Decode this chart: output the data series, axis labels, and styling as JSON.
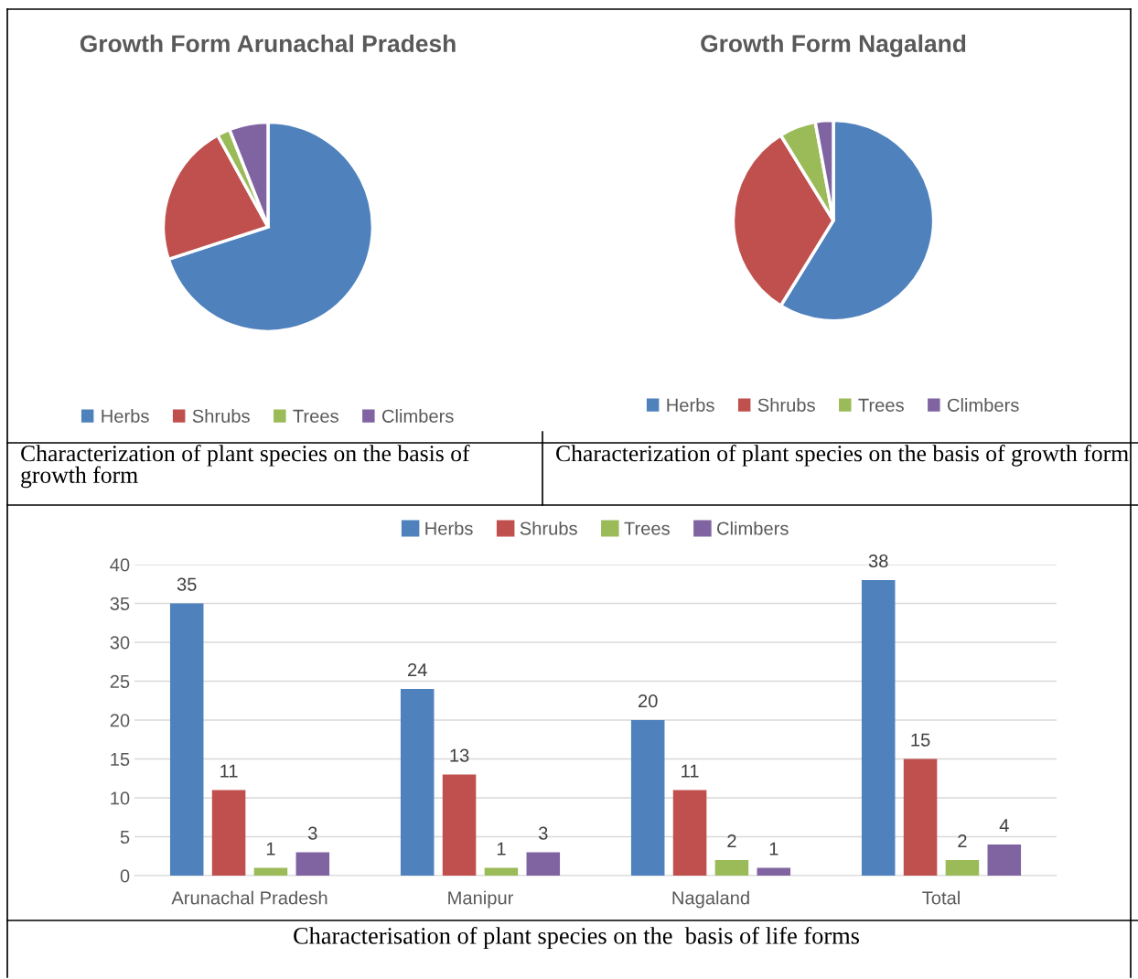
{
  "chart_data": [
    {
      "type": "pie",
      "title": "Growth Form Arunachal Pradesh",
      "categories": [
        "Herbs",
        "Shrubs",
        "Trees",
        "Climbers"
      ],
      "values": [
        70,
        22,
        2,
        6
      ],
      "colors": [
        "#4f81bd",
        "#c0504d",
        "#9bbb59",
        "#8064a2"
      ],
      "legend": "bottom",
      "annotations": [
        "Characterization of plant species on the basis of growth form"
      ]
    },
    {
      "type": "pie",
      "title": "Growth Form Nagaland",
      "categories": [
        "Herbs",
        "Shrubs",
        "Trees",
        "Climbers"
      ],
      "values": [
        58.8,
        32.4,
        5.9,
        2.9
      ],
      "colors": [
        "#4f81bd",
        "#c0504d",
        "#9bbb59",
        "#8064a2"
      ],
      "legend": "bottom",
      "annotations": [
        "Characterization of plant species on the basis of growth form"
      ]
    },
    {
      "type": "bar",
      "categories": [
        "Arunachal Pradesh",
        "Manipur",
        "Nagaland",
        "Total"
      ],
      "series": [
        {
          "name": "Herbs",
          "color": "#4f81bd",
          "values": [
            35,
            24,
            20,
            38
          ]
        },
        {
          "name": "Shrubs",
          "color": "#c0504d",
          "values": [
            11,
            13,
            11,
            15
          ]
        },
        {
          "name": "Trees",
          "color": "#9bbb59",
          "values": [
            1,
            1,
            2,
            2
          ]
        },
        {
          "name": "Climbers",
          "color": "#8064a2",
          "values": [
            3,
            3,
            1,
            4
          ]
        }
      ],
      "ylim": [
        0,
        40
      ],
      "yticks": [
        0,
        5,
        10,
        15,
        20,
        25,
        30,
        35,
        40
      ],
      "grid": "y",
      "legend": "top",
      "data_labels": true,
      "annotations": [
        "Characterisation of plant species on the  basis of life forms"
      ]
    }
  ]
}
